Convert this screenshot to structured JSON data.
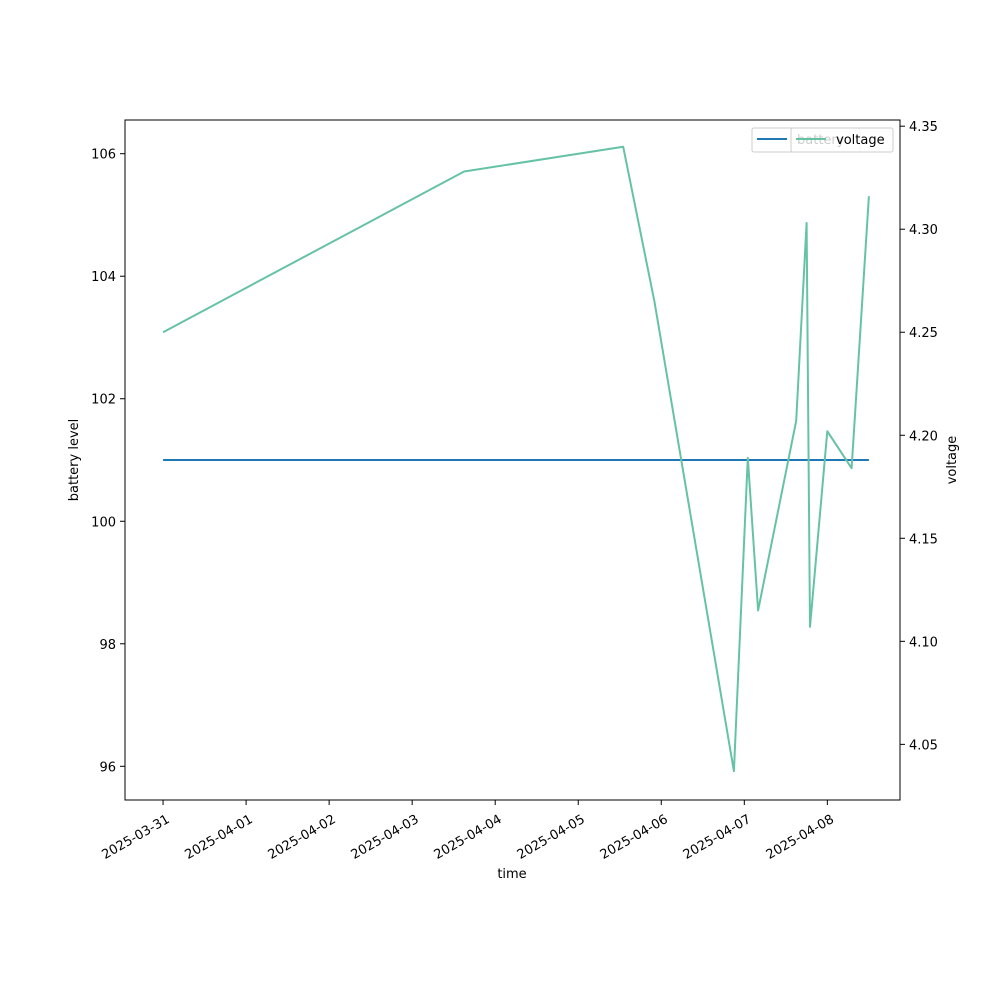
{
  "chart_data": {
    "type": "line",
    "xlabel": "time",
    "ylabel_left": "battery level",
    "ylabel_right": "voltage",
    "x_ticks": [
      "2025-03-31",
      "2025-04-01",
      "2025-04-02",
      "2025-04-03",
      "2025-04-04",
      "2025-04-05",
      "2025-04-06",
      "2025-04-07",
      "2025-04-08"
    ],
    "y_left_ticks": [
      96,
      98,
      100,
      102,
      104,
      106
    ],
    "y_right_ticks": [
      "4.05",
      "4.10",
      "4.15",
      "4.20",
      "4.25",
      "4.30",
      "4.35"
    ],
    "ylim_left": [
      95.45,
      106.55
    ],
    "ylim_right": [
      4.023,
      4.353
    ],
    "xlim": [
      "2025-03-30 13:00",
      "2025-04-08 21:00"
    ],
    "legend": {
      "location": "top-right"
    },
    "series": [
      {
        "name": "battery",
        "axis": "left",
        "color": "#1f77b4",
        "x": [
          "2025-03-31 00:00",
          "2025-04-08 12:00"
        ],
        "y": [
          101,
          101
        ]
      },
      {
        "name": "voltage",
        "axis": "right",
        "color": "#66c2a5",
        "x": [
          "2025-03-31 00:00",
          "2025-04-03 15:00",
          "2025-04-05 13:00",
          "2025-04-05 22:00",
          "2025-04-06 21:00",
          "2025-04-07 01:00",
          "2025-04-07 04:00",
          "2025-04-07 15:00",
          "2025-04-07 18:00",
          "2025-04-07 19:00",
          "2025-04-08 00:00",
          "2025-04-08 07:00",
          "2025-04-08 12:00"
        ],
        "y": [
          4.25,
          4.328,
          4.34,
          4.265,
          4.037,
          4.189,
          4.115,
          4.207,
          4.303,
          4.107,
          4.202,
          4.184,
          4.316
        ]
      }
    ]
  }
}
